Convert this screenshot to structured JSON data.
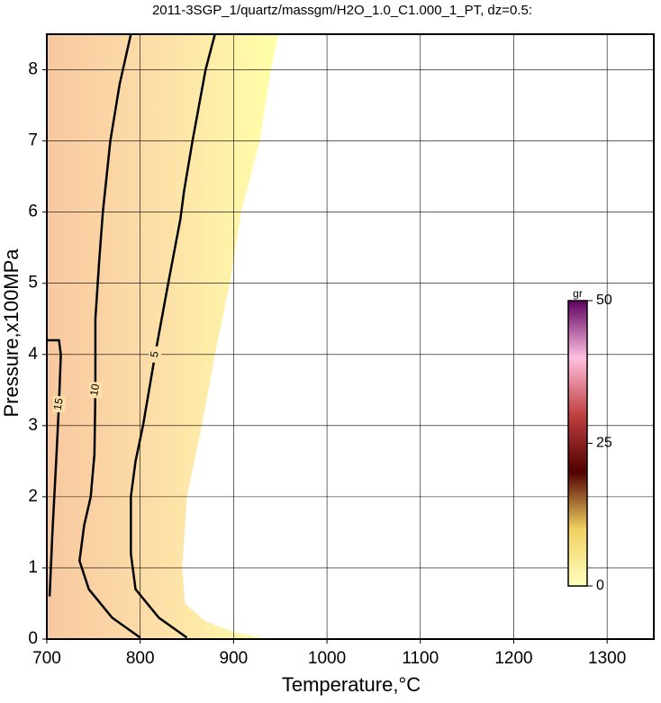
{
  "chart_data": {
    "type": "contour",
    "title": "2011-3SGP_1/quartz/massgm/H2O_1.0_C1.000_1_PT, dz=0.5:",
    "x_label": "Temperature,°C",
    "y_label": "Pressure,x100MPa",
    "xlim": [
      700,
      1350
    ],
    "ylim": [
      0,
      8.5
    ],
    "xticks": [
      700,
      800,
      900,
      1000,
      1100,
      1200,
      1300
    ],
    "yticks": [
      0,
      1,
      2,
      3,
      4,
      5,
      6,
      7,
      8
    ],
    "grid": true,
    "domain": {
      "x": [
        700,
        940,
        900,
        870,
        848,
        845,
        850,
        866,
        880,
        896,
        908,
        928,
        940,
        948,
        700
      ],
      "y": [
        0,
        0,
        0.1,
        0.25,
        0.5,
        1,
        2,
        3,
        4,
        5,
        6,
        7,
        8,
        8.5,
        8.5
      ]
    },
    "series": [
      {
        "name": "15",
        "color": "#000000",
        "x": [
          703,
          706,
          710,
          713,
          715,
          713,
          700
        ],
        "y": [
          0.6,
          1.5,
          2.5,
          3.3,
          4.0,
          4.2,
          4.2
        ]
      },
      {
        "name": "10",
        "color": "#000000",
        "x": [
          800,
          770,
          745,
          735,
          740,
          747,
          751,
          752,
          752,
          756,
          760,
          768,
          778,
          790
        ],
        "y": [
          0.02,
          0.3,
          0.7,
          1.1,
          1.6,
          2.0,
          2.6,
          3.5,
          4.5,
          5.3,
          6.0,
          7.0,
          7.8,
          8.5
        ]
      },
      {
        "name": "5",
        "color": "#000000",
        "x": [
          850,
          820,
          795,
          790,
          790,
          795,
          803,
          816,
          830,
          843,
          847,
          856,
          870,
          880
        ],
        "y": [
          0.02,
          0.3,
          0.7,
          1.2,
          2.0,
          2.5,
          3.0,
          4.0,
          5.0,
          5.9,
          6.3,
          7.0,
          8.0,
          8.5
        ]
      }
    ],
    "colorbar": {
      "label": "gr",
      "lim": [
        0,
        50
      ],
      "ticks": [
        0,
        25,
        50
      ],
      "colors": [
        "#ffffc0",
        "#f0d060",
        "#500000",
        "#c04040",
        "#ffc0e0",
        "#600060"
      ]
    }
  }
}
